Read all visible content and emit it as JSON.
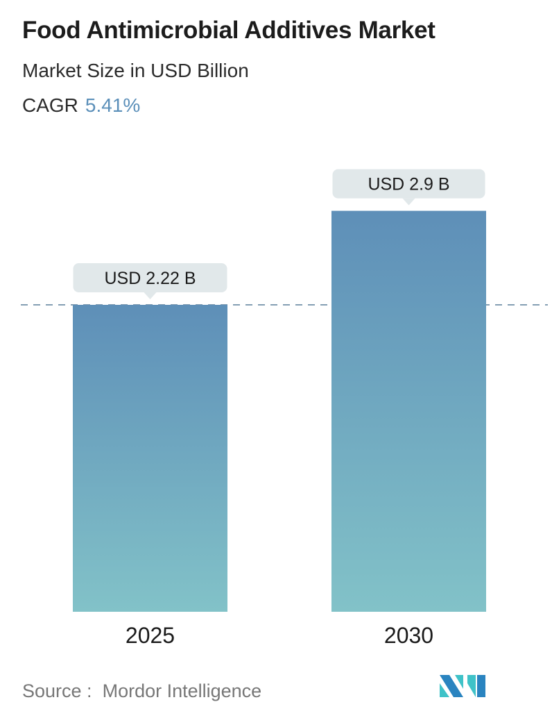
{
  "header": {
    "title": "Food Antimicrobial Additives Market",
    "subtitle": "Market Size in USD Billion",
    "cagr_label": "CAGR",
    "cagr_value": "5.41%"
  },
  "chart_data": {
    "type": "bar",
    "categories": [
      "2025",
      "2030"
    ],
    "values": [
      2.22,
      2.9
    ],
    "data_labels": [
      "USD 2.22 B",
      "USD 2.9 B"
    ],
    "unit": "USD Billion",
    "reference_line": 2.22,
    "colors": {
      "bar_top": "#5e8fb8",
      "bar_bottom": "#82c2c8",
      "label_bg": "#e1e8ea",
      "dash": "#5a7f9a"
    }
  },
  "footer": {
    "source_label": "Source :",
    "source_value": "Mordor Intelligence",
    "logo_text": "Mordor Intelligence"
  }
}
